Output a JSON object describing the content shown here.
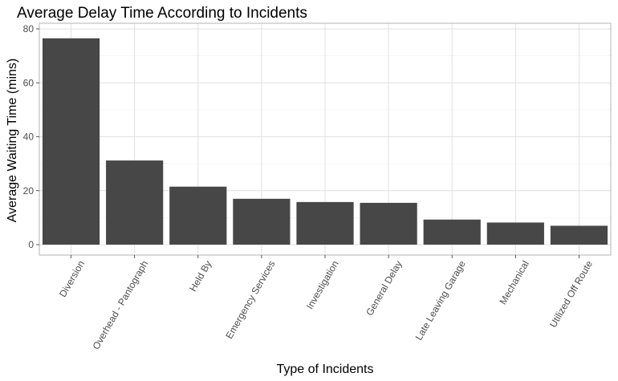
{
  "chart_data": {
    "type": "bar",
    "title": "Average Delay Time According to Incidents",
    "xlabel": "Type of Incidents",
    "ylabel": "Average Waiting Time (mins)",
    "categories": [
      "Diversion",
      "Overhead - Pantograph",
      "Held By",
      "Emergency Services",
      "Investigation",
      "General Delay",
      "Late Leaving Garage",
      "Mechanical",
      "Utilized Off Route"
    ],
    "values": [
      76.5,
      31.2,
      21.5,
      17.0,
      15.8,
      15.5,
      9.3,
      8.2,
      7.0
    ],
    "ylim": [
      0,
      80
    ],
    "yticks": [
      0,
      20,
      40,
      60,
      80
    ],
    "grid": true,
    "bar_color": "#474747"
  }
}
